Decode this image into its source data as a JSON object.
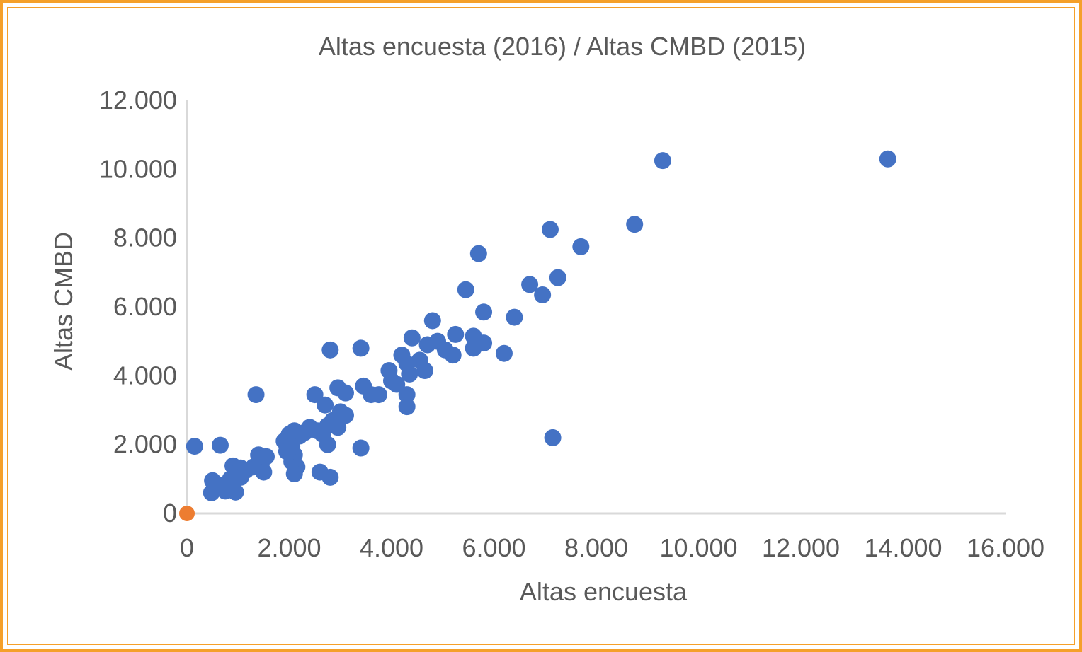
{
  "chart_data": {
    "type": "scatter",
    "title": "Altas encuesta (2016) / Altas CMBD (2015)",
    "xlabel": "Altas encuesta",
    "ylabel": "Altas CMBD",
    "xlim": [
      0,
      16000
    ],
    "ylim": [
      0,
      12000
    ],
    "x_ticks": [
      "0",
      "2.000",
      "4.000",
      "6.000",
      "8.000",
      "10.000",
      "12.000",
      "14.000",
      "16.000"
    ],
    "y_ticks": [
      "0",
      "2.000",
      "4.000",
      "6.000",
      "8.000",
      "10.000",
      "12.000"
    ],
    "grid": false,
    "legend": "none",
    "series": [
      {
        "color": "#4472c4",
        "points": [
          [
            150,
            1950
          ],
          [
            650,
            1980
          ],
          [
            1350,
            3450
          ],
          [
            500,
            950
          ],
          [
            480,
            600
          ],
          [
            750,
            650
          ],
          [
            950,
            620
          ],
          [
            580,
            850
          ],
          [
            900,
            1380
          ],
          [
            1050,
            1320
          ],
          [
            950,
            1150
          ],
          [
            1150,
            1250
          ],
          [
            1050,
            1050
          ],
          [
            850,
            1000
          ],
          [
            1400,
            1700
          ],
          [
            1550,
            1650
          ],
          [
            1450,
            1400
          ],
          [
            1500,
            1200
          ],
          [
            1300,
            1350
          ],
          [
            1900,
            2100
          ],
          [
            2000,
            2300
          ],
          [
            2100,
            2400
          ],
          [
            2200,
            2250
          ],
          [
            1950,
            1800
          ],
          [
            2050,
            1950
          ],
          [
            2100,
            1700
          ],
          [
            2050,
            1500
          ],
          [
            2150,
            1350
          ],
          [
            2100,
            1150
          ],
          [
            2300,
            2350
          ],
          [
            2400,
            2500
          ],
          [
            2550,
            2400
          ],
          [
            2650,
            2300
          ],
          [
            2500,
            3450
          ],
          [
            2700,
            3150
          ],
          [
            2850,
            2700
          ],
          [
            2750,
            2550
          ],
          [
            2600,
            1200
          ],
          [
            2800,
            1050
          ],
          [
            2750,
            2000
          ],
          [
            2800,
            4750
          ],
          [
            2950,
            3650
          ],
          [
            3100,
            3500
          ],
          [
            3000,
            2950
          ],
          [
            3100,
            2850
          ],
          [
            2950,
            2500
          ],
          [
            3400,
            4800
          ],
          [
            3450,
            3700
          ],
          [
            3600,
            3450
          ],
          [
            3750,
            3450
          ],
          [
            3400,
            1900
          ],
          [
            3950,
            4150
          ],
          [
            4000,
            3850
          ],
          [
            4100,
            3750
          ],
          [
            4200,
            4600
          ],
          [
            4300,
            4350
          ],
          [
            4350,
            4050
          ],
          [
            4300,
            3450
          ],
          [
            4300,
            3100
          ],
          [
            4400,
            5100
          ],
          [
            4550,
            4450
          ],
          [
            4650,
            4150
          ],
          [
            4700,
            4900
          ],
          [
            4800,
            5600
          ],
          [
            4900,
            5000
          ],
          [
            5050,
            4750
          ],
          [
            5250,
            5200
          ],
          [
            5200,
            4600
          ],
          [
            5450,
            6500
          ],
          [
            5600,
            5150
          ],
          [
            5700,
            7550
          ],
          [
            5600,
            4800
          ],
          [
            5800,
            5850
          ],
          [
            5800,
            4950
          ],
          [
            6200,
            4650
          ],
          [
            6400,
            5700
          ],
          [
            6700,
            6650
          ],
          [
            6950,
            6350
          ],
          [
            7100,
            8250
          ],
          [
            7250,
            6850
          ],
          [
            7700,
            7750
          ],
          [
            7150,
            2200
          ],
          [
            8750,
            8400
          ],
          [
            9300,
            10250
          ],
          [
            13700,
            10300
          ]
        ]
      },
      {
        "color": "#ed7d31",
        "points": [
          [
            0,
            0
          ]
        ]
      }
    ]
  }
}
